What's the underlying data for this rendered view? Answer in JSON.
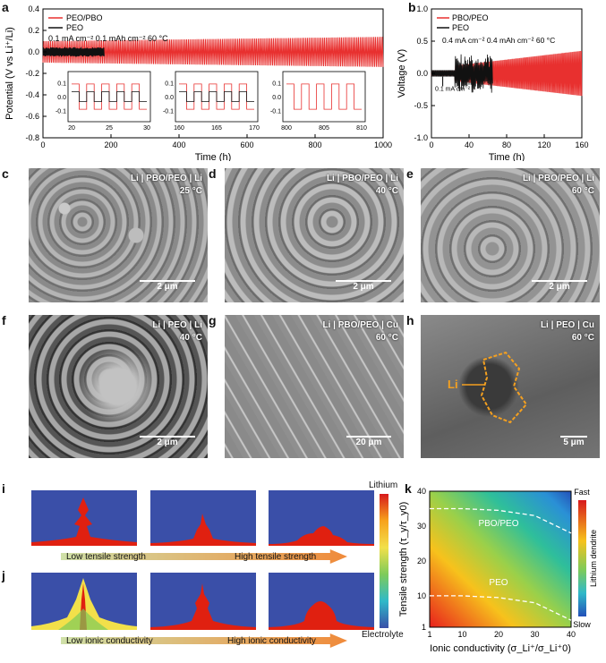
{
  "panels": {
    "a": {
      "label": "a",
      "ylabel": "Potential (V vs Li⁺/Li)",
      "xlabel": "Time (h)",
      "legend": [
        "PEO/PBO",
        "PEO"
      ],
      "conditions": "0.1 mA cm⁻²   0.1 mAh cm⁻²   60 °C",
      "yticks": [
        "0.4",
        "0.2",
        "0.0",
        "-0.2",
        "-0.4",
        "-0.6",
        "-0.8"
      ],
      "xticks": [
        "0",
        "200",
        "400",
        "600",
        "800",
        "1000"
      ],
      "insets": [
        {
          "xticks": [
            "20",
            "25",
            "30"
          ],
          "yticks": [
            "0.1",
            "0.0",
            "-0.1"
          ]
        },
        {
          "xticks": [
            "160",
            "165",
            "170"
          ],
          "yticks": [
            "0.1",
            "0.0",
            "-0.1"
          ]
        },
        {
          "xticks": [
            "800",
            "805",
            "810"
          ],
          "yticks": [
            "0.1",
            "0.0",
            "-0.1"
          ]
        }
      ]
    },
    "b": {
      "label": "b",
      "ylabel": "Voltage (V)",
      "xlabel": "Time (h)",
      "legend": [
        "PBO/PEO",
        "PEO"
      ],
      "conditions": "0.4 mA cm⁻²   0.4 mAh cm⁻²   60 °C",
      "annotation": "0.1 mA cm⁻²",
      "yticks": [
        "1.0",
        "0.5",
        "0.0",
        "-0.5",
        "-1.0"
      ],
      "xticks": [
        "0",
        "40",
        "80",
        "120",
        "160"
      ]
    },
    "c": {
      "label": "c",
      "title": "Li | PBO/PEO | Li",
      "temp": "25 °C",
      "scale": "2 μm"
    },
    "d": {
      "label": "d",
      "title": "Li | PBO/PEO | Li",
      "temp": "40 °C",
      "scale": "2 μm"
    },
    "e": {
      "label": "e",
      "title": "Li | PBO/PEO | Li",
      "temp": "60 °C",
      "scale": "2 μm"
    },
    "f": {
      "label": "f",
      "title": "Li | PEO | Li",
      "temp": "40 °C",
      "scale": "2 μm"
    },
    "g": {
      "label": "g",
      "title": "Li | PBO/PEO | Cu",
      "temp": "60 °C",
      "scale": "20 μm"
    },
    "h": {
      "label": "h",
      "title": "Li | PEO | Cu",
      "temp": "60 °C",
      "scale": "5 μm",
      "li_label": "Li"
    },
    "i": {
      "label": "i",
      "left": "Low tensile strength",
      "right": "High tensile strength"
    },
    "j": {
      "label": "j",
      "left": "Low ionic conductivity",
      "right": "High ionic conductivity"
    },
    "colorbar_ij": {
      "top": "Lithium",
      "bottom": "Electrolyte"
    },
    "k": {
      "label": "k",
      "ylabel": "Tensile strength (τ_y/τ_y0)",
      "xlabel": "Ionic conductivity (σ_Li⁺/σ_Li⁺0)",
      "curve_labels": [
        "PBO/PEO",
        "PEO"
      ],
      "xticks": [
        "1",
        "10",
        "20",
        "30",
        "40"
      ],
      "yticks": [
        "1",
        "10",
        "20",
        "30",
        "40"
      ],
      "colorbar": {
        "top": "Fast",
        "bottom": "Slow",
        "label": "Lithium dendrite"
      }
    }
  },
  "chart_data": [
    {
      "type": "line",
      "title": "",
      "xlabel": "Time (h)",
      "ylabel": "Potential (V vs Li⁺/Li)",
      "xlim": [
        0,
        1000
      ],
      "ylim": [
        -0.8,
        0.4
      ],
      "series": [
        {
          "name": "PEO/PBO",
          "x": [
            0,
            1000
          ],
          "amplitude": [
            0.1,
            0.14
          ]
        },
        {
          "name": "PEO",
          "x": [
            0,
            180
          ],
          "amplitude": [
            0.03,
            0.04
          ]
        }
      ]
    },
    {
      "type": "line",
      "title": "",
      "xlabel": "Time (h)",
      "ylabel": "Voltage (V)",
      "xlim": [
        0,
        160
      ],
      "ylim": [
        -1.0,
        1.0
      ],
      "series": [
        {
          "name": "PBO/PEO",
          "x": [
            0,
            25,
            160
          ],
          "amplitude": [
            0.04,
            0.15,
            0.35
          ]
        },
        {
          "name": "PEO",
          "x": [
            0,
            65
          ],
          "amplitude": [
            0.05,
            0.3
          ]
        }
      ]
    },
    {
      "type": "heatmap",
      "title": "",
      "xlabel": "Ionic conductivity (σ_Li⁺/σ_Li⁺0)",
      "ylabel": "Tensile strength (τ_y/τ_y0)",
      "xlim": [
        1,
        40
      ],
      "ylim": [
        1,
        40
      ],
      "series": [
        {
          "name": "PBO/PEO",
          "x": [
            1,
            10,
            20,
            30,
            40
          ],
          "y": [
            35,
            35,
            34.5,
            33,
            28
          ]
        },
        {
          "name": "PEO",
          "x": [
            1,
            10,
            20,
            30,
            40
          ],
          "y": [
            10,
            10,
            9.5,
            8,
            3
          ]
        }
      ]
    }
  ],
  "colors": {
    "red": "#e8302f",
    "black": "#111111",
    "sim_bg": "#3a4fa8",
    "dendrite": "#e02010",
    "arrow_start": "#cfe0a8",
    "arrow_end": "#f08a3a"
  }
}
